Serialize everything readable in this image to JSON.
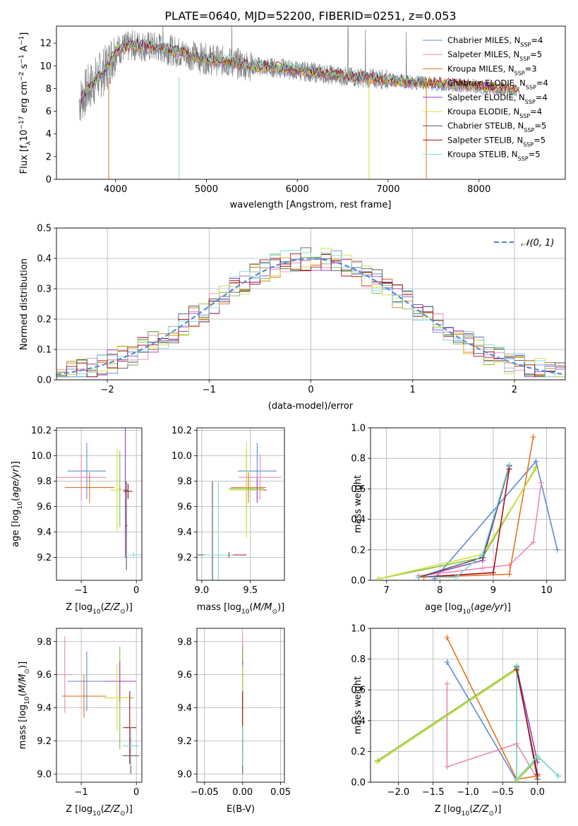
{
  "page_title": "PLATE=0640, MJD=52200, FIBERID=0251, z=0.053",
  "colors": {
    "Chabrier MILES": "#5b8bd6",
    "Salpeter MILES": "#e889b4",
    "Kroupa MILES": "#e3731f",
    "Chabrier ELODIE": "#7fbf3f",
    "Salpeter ELODIE": "#9b3fbf",
    "Kroupa ELODIE": "#d4df3c",
    "Chabrier STELIB": "#555555",
    "Salpeter STELIB": "#a01020",
    "Kroupa STELIB": "#7ed8d8",
    "data": "#808080",
    "normal": "#5b8bd6"
  },
  "chart_data": [
    {
      "type": "line",
      "id": "spectrum",
      "title": "PLATE=0640, MJD=52200, FIBERID=0251, z=0.053",
      "xlabel": "wavelength [Angstrom, rest frame]",
      "ylabel": "Flux [f_λ10^-17 erg cm^-2 s^-1 A^-1]",
      "xlim": [
        3350,
        8950
      ],
      "ylim": [
        0,
        13.5
      ],
      "xticks": [
        "4000",
        "5000",
        "6000",
        "7000",
        "8000"
      ],
      "yticks": [
        "0",
        "2",
        "4",
        "6",
        "8",
        "10",
        "12"
      ],
      "grid": false,
      "legend_position": "top-right",
      "series": [
        {
          "name": "Chabrier MILES",
          "nssp": "4"
        },
        {
          "name": "Salpeter MILES",
          "nssp": "5"
        },
        {
          "name": "Kroupa MILES",
          "nssp": "3"
        },
        {
          "name": "Chabrier ELODIE",
          "nssp": "4"
        },
        {
          "name": "Salpeter ELODIE",
          "nssp": "4"
        },
        {
          "name": "Kroupa ELODIE",
          "nssp": "4"
        },
        {
          "name": "Chabrier STELIB",
          "nssp": "5"
        },
        {
          "name": "Salpeter STELIB",
          "nssp": "5"
        },
        {
          "name": "Kroupa STELIB",
          "nssp": "5"
        }
      ],
      "data_profile": {
        "x": [
          3600,
          3700,
          3900,
          4000,
          4200,
          4500,
          4800,
          5000,
          5200,
          5500,
          5800,
          6000,
          6300,
          6600,
          6800,
          7000,
          7200,
          7400,
          7600,
          7800,
          8000,
          8200,
          8400
        ],
        "y": [
          6.8,
          8.0,
          9.8,
          11.4,
          11.8,
          11.6,
          11.0,
          10.6,
          10.4,
          10.0,
          9.8,
          9.6,
          9.3,
          9.0,
          8.9,
          8.8,
          8.6,
          8.5,
          8.4,
          8.3,
          8.2,
          8.0,
          7.9
        ]
      }
    },
    {
      "type": "bar",
      "id": "residuals",
      "xlabel": "(data-model)/error",
      "ylabel": "Normed distribution",
      "xlim": [
        -2.5,
        2.5
      ],
      "ylim": [
        0,
        0.5
      ],
      "xticks": [
        "−2",
        "−1",
        "0",
        "1",
        "2"
      ],
      "yticks": [
        "0.0",
        "0.1",
        "0.2",
        "0.3",
        "0.4",
        "0.5"
      ],
      "grid": true,
      "legend_position": "top-right",
      "legend_label": "𝒩(0, 1)",
      "bin_width": 0.1
    },
    {
      "type": "scatter",
      "id": "age-vs-Z",
      "xlabel": "Z [log10(Z/Z⊙)]",
      "ylabel": "age  [log10(age/yr)]",
      "xlim": [
        -1.45,
        0.1
      ],
      "ylim": [
        9.02,
        10.22
      ],
      "xticks": [
        "−1",
        "0"
      ],
      "yticks": [
        "9.2",
        "9.4",
        "9.6",
        "9.8",
        "10.0",
        "10.2"
      ],
      "points": [
        {
          "series": "Chabrier MILES",
          "x": -0.9,
          "y": 9.88,
          "xerr": 0.35,
          "yerr": 0.22
        },
        {
          "series": "Salpeter MILES",
          "x": -1.0,
          "y": 9.83,
          "xerr": 0.45,
          "yerr": 0.18
        },
        {
          "series": "Kroupa MILES",
          "x": -0.85,
          "y": 9.75,
          "xerr": 0.45,
          "yerr": 0.12
        },
        {
          "series": "Chabrier ELODIE",
          "x": -0.3,
          "y": 9.74,
          "xerr": 0.02,
          "yerr": 0.3
        },
        {
          "series": "Salpeter ELODIE",
          "x": -0.2,
          "y": 9.73,
          "xerr": 0.05,
          "yerr": 0.53
        },
        {
          "series": "Kroupa ELODIE",
          "x": -0.35,
          "y": 9.73,
          "xerr": 0.12,
          "yerr": 0.32
        },
        {
          "series": "Chabrier STELIB",
          "x": -0.18,
          "y": 9.45,
          "xerr": 0.02,
          "yerr": 0.35
        },
        {
          "series": "Salpeter STELIB",
          "x": -0.15,
          "y": 9.72,
          "xerr": 0.08,
          "yerr": 0.06
        },
        {
          "series": "Kroupa STELIB",
          "x": -0.05,
          "y": 9.22,
          "xerr": 0.15,
          "yerr": 0.02
        }
      ]
    },
    {
      "type": "scatter",
      "id": "age-vs-mass",
      "xlabel": "mass [log10(M/M⊙)]",
      "ylabel": "",
      "xlim": [
        8.95,
        9.85
      ],
      "ylim": [
        9.02,
        10.22
      ],
      "xticks": [
        "9.0",
        "9.5"
      ],
      "yticks": [
        "9.2",
        "9.4",
        "9.6",
        "9.8",
        "10.0",
        "10.2"
      ],
      "points": [
        {
          "series": "Chabrier MILES",
          "x": 9.57,
          "y": 9.88,
          "xerr": 0.2,
          "yerr": 0.22
        },
        {
          "series": "Salpeter MILES",
          "x": 9.6,
          "y": 9.83,
          "xerr": 0.22,
          "yerr": 0.18
        },
        {
          "series": "Kroupa MILES",
          "x": 9.48,
          "y": 9.75,
          "xerr": 0.18,
          "yerr": 0.12
        },
        {
          "series": "Chabrier ELODIE",
          "x": 9.46,
          "y": 9.74,
          "xerr": 0.18,
          "yerr": 0.3
        },
        {
          "series": "Salpeter ELODIE",
          "x": 9.57,
          "y": 9.73,
          "xerr": 0.1,
          "yerr": 0.1
        },
        {
          "series": "Kroupa ELODIE",
          "x": 9.46,
          "y": 9.73,
          "xerr": 0.18,
          "yerr": 0.38
        },
        {
          "series": "Chabrier STELIB",
          "x": 9.11,
          "y": 9.22,
          "xerr": 0.18,
          "yerr": 0.58
        },
        {
          "series": "Salpeter STELIB",
          "x": 9.28,
          "y": 9.22,
          "xerr": 0.18,
          "yerr": 0.02
        },
        {
          "series": "Kroupa STELIB",
          "x": 9.17,
          "y": 9.22,
          "xerr": 0.15,
          "yerr": 0.58
        }
      ]
    },
    {
      "type": "line",
      "id": "mass-weight-vs-age",
      "xlabel": "age  [log10(age/yr)]",
      "ylabel": "mass weight",
      "xlim": [
        6.7,
        10.35
      ],
      "ylim": [
        0,
        1
      ],
      "xticks": [
        "7",
        "8",
        "9",
        "10"
      ],
      "yticks": [
        "0.0",
        "0.2",
        "0.4",
        "0.6",
        "0.8",
        "1.0"
      ],
      "grid": true,
      "series": [
        {
          "name": "Chabrier MILES",
          "x": [
            7.9,
            9.8,
            10.2
          ],
          "y": [
            0.01,
            0.78,
            0.2
          ]
        },
        {
          "name": "Salpeter MILES",
          "x": [
            7.6,
            8.8,
            9.3,
            9.75,
            9.9
          ],
          "y": [
            0.03,
            0.08,
            0.1,
            0.25,
            0.64
          ]
        },
        {
          "name": "Kroupa MILES",
          "x": [
            7.7,
            9.3,
            9.75
          ],
          "y": [
            0.02,
            0.04,
            0.94
          ]
        },
        {
          "name": "Chabrier ELODIE",
          "x": [
            6.85,
            8.8,
            9.8
          ],
          "y": [
            0.01,
            0.15,
            0.74
          ]
        },
        {
          "name": "Salpeter ELODIE",
          "x": [
            7.6,
            8.8,
            9.3
          ],
          "y": [
            0.02,
            0.13,
            0.75
          ]
        },
        {
          "name": "Kroupa ELODIE",
          "x": [
            6.85,
            8.8,
            9.8
          ],
          "y": [
            0.01,
            0.17,
            0.73
          ]
        },
        {
          "name": "Chabrier STELIB",
          "x": [
            7.6,
            8.8,
            9.3
          ],
          "y": [
            0.02,
            0.15,
            0.75
          ]
        },
        {
          "name": "Salpeter STELIB",
          "x": [
            7.6,
            9.0,
            9.3
          ],
          "y": [
            0.02,
            0.05,
            0.73
          ]
        },
        {
          "name": "Kroupa STELIB",
          "x": [
            7.6,
            8.3,
            8.8,
            9.3
          ],
          "y": [
            0.02,
            0.02,
            0.17,
            0.76
          ]
        }
      ]
    },
    {
      "type": "scatter",
      "id": "mass-vs-Z",
      "xlabel": "Z [log10(Z/Z⊙)]",
      "ylabel": "mass [log10(M/M⊙)]",
      "xlim": [
        -1.45,
        0.1
      ],
      "ylim": [
        8.95,
        9.88
      ],
      "xticks": [
        "−1",
        "0"
      ],
      "yticks": [
        "9.0",
        "9.2",
        "9.4",
        "9.6",
        "9.8"
      ],
      "points": [
        {
          "series": "Chabrier MILES",
          "x": -0.9,
          "y": 9.56,
          "xerr": 0.35,
          "yerr": 0.18
        },
        {
          "series": "Salpeter MILES",
          "x": -1.3,
          "y": 9.6,
          "xerr": 0.15,
          "yerr": 0.23
        },
        {
          "series": "Kroupa MILES",
          "x": -0.95,
          "y": 9.47,
          "xerr": 0.4,
          "yerr": 0.13
        },
        {
          "series": "Chabrier ELODIE",
          "x": -0.3,
          "y": 9.46,
          "xerr": 0.25,
          "yerr": 0.31
        },
        {
          "series": "Salpeter ELODIE",
          "x": -0.3,
          "y": 9.56,
          "xerr": 0.3,
          "yerr": 0.12
        },
        {
          "series": "Kroupa ELODIE",
          "x": -0.35,
          "y": 9.46,
          "xerr": 0.25,
          "yerr": 0.2
        },
        {
          "series": "Chabrier STELIB",
          "x": -0.1,
          "y": 9.11,
          "xerr": 0.15,
          "yerr": 0.11
        },
        {
          "series": "Salpeter STELIB",
          "x": -0.12,
          "y": 9.28,
          "xerr": 0.12,
          "yerr": 0.22
        },
        {
          "series": "Kroupa STELIB",
          "x": -0.1,
          "y": 9.17,
          "xerr": 0.15,
          "yerr": 0.12
        }
      ]
    },
    {
      "type": "scatter",
      "id": "mass-vs-EBV",
      "xlabel": "E(B-V)",
      "ylabel": "",
      "xlim": [
        -0.06,
        0.055
      ],
      "ylim": [
        8.95,
        9.88
      ],
      "xticks": [
        "−0.05",
        "0.00",
        "0.05"
      ],
      "yticks": [
        "9.0",
        "9.2",
        "9.4",
        "9.6",
        "9.8"
      ],
      "points": [
        {
          "series": "Chabrier MILES",
          "x": 0.0,
          "y": 9.56,
          "xerr": 0,
          "yerr": 0.18
        },
        {
          "series": "Salpeter MILES",
          "x": 0.0,
          "y": 9.6,
          "xerr": 0,
          "yerr": 0.25
        },
        {
          "series": "Kroupa MILES",
          "x": 0.0,
          "y": 9.47,
          "xerr": 0,
          "yerr": 0.13
        },
        {
          "series": "Chabrier ELODIE",
          "x": 0.0,
          "y": 9.46,
          "xerr": 0,
          "yerr": 0.31
        },
        {
          "series": "Salpeter ELODIE",
          "x": 0.0,
          "y": 9.56,
          "xerr": 0,
          "yerr": 0.12
        },
        {
          "series": "Kroupa ELODIE",
          "x": 0.0,
          "y": 9.46,
          "xerr": 0,
          "yerr": 0.2
        },
        {
          "series": "Chabrier STELIB",
          "x": 0.0,
          "y": 9.11,
          "xerr": 0,
          "yerr": 0.11
        },
        {
          "series": "Salpeter STELIB",
          "x": 0.0,
          "y": 9.28,
          "xerr": 0,
          "yerr": 0.22
        },
        {
          "series": "Kroupa STELIB",
          "x": 0.0,
          "y": 9.17,
          "xerr": 0,
          "yerr": 0.12
        }
      ]
    },
    {
      "type": "line",
      "id": "mass-weight-vs-Z",
      "xlabel": "Z [log10(Z/Z⊙)]",
      "ylabel": "mass weight",
      "xlim": [
        -2.4,
        0.4
      ],
      "ylim": [
        0,
        1
      ],
      "xticks": [
        "−2.0",
        "−1.5",
        "−1.0",
        "−0.5",
        "0.0"
      ],
      "yticks": [
        "0.0",
        "0.2",
        "0.4",
        "0.6",
        "0.8",
        "1.0"
      ],
      "grid": true,
      "series": [
        {
          "name": "Chabrier MILES",
          "x": [
            -1.3,
            -0.3,
            0.0,
            0.3
          ],
          "y": [
            0.78,
            0.01,
            0.17,
            0.04
          ]
        },
        {
          "name": "Salpeter MILES",
          "x": [
            -1.3,
            -1.3,
            -0.3,
            0.0
          ],
          "y": [
            0.64,
            0.1,
            0.25,
            0.02
          ]
        },
        {
          "name": "Kroupa MILES",
          "x": [
            -1.3,
            -0.3,
            0.0
          ],
          "y": [
            0.94,
            0.02,
            0.04
          ]
        },
        {
          "name": "Chabrier ELODIE",
          "x": [
            -2.3,
            -0.3,
            -0.3,
            0.0
          ],
          "y": [
            0.14,
            0.74,
            0.01,
            0.15
          ]
        },
        {
          "name": "Salpeter ELODIE",
          "x": [
            -0.3,
            0.0
          ],
          "y": [
            0.75,
            0.13
          ]
        },
        {
          "name": "Kroupa ELODIE",
          "x": [
            -2.3,
            -0.3,
            -0.3,
            0.0
          ],
          "y": [
            0.13,
            0.73,
            0.01,
            0.17
          ]
        },
        {
          "name": "Chabrier STELIB",
          "x": [
            -0.3,
            0.0
          ],
          "y": [
            0.75,
            0.02
          ]
        },
        {
          "name": "Salpeter STELIB",
          "x": [
            -0.3,
            0.0
          ],
          "y": [
            0.73,
            0.05
          ]
        },
        {
          "name": "Kroupa STELIB",
          "x": [
            -0.3,
            -0.3,
            0.0,
            0.3
          ],
          "y": [
            0.76,
            0.02,
            0.17,
            0.04
          ]
        }
      ]
    }
  ]
}
